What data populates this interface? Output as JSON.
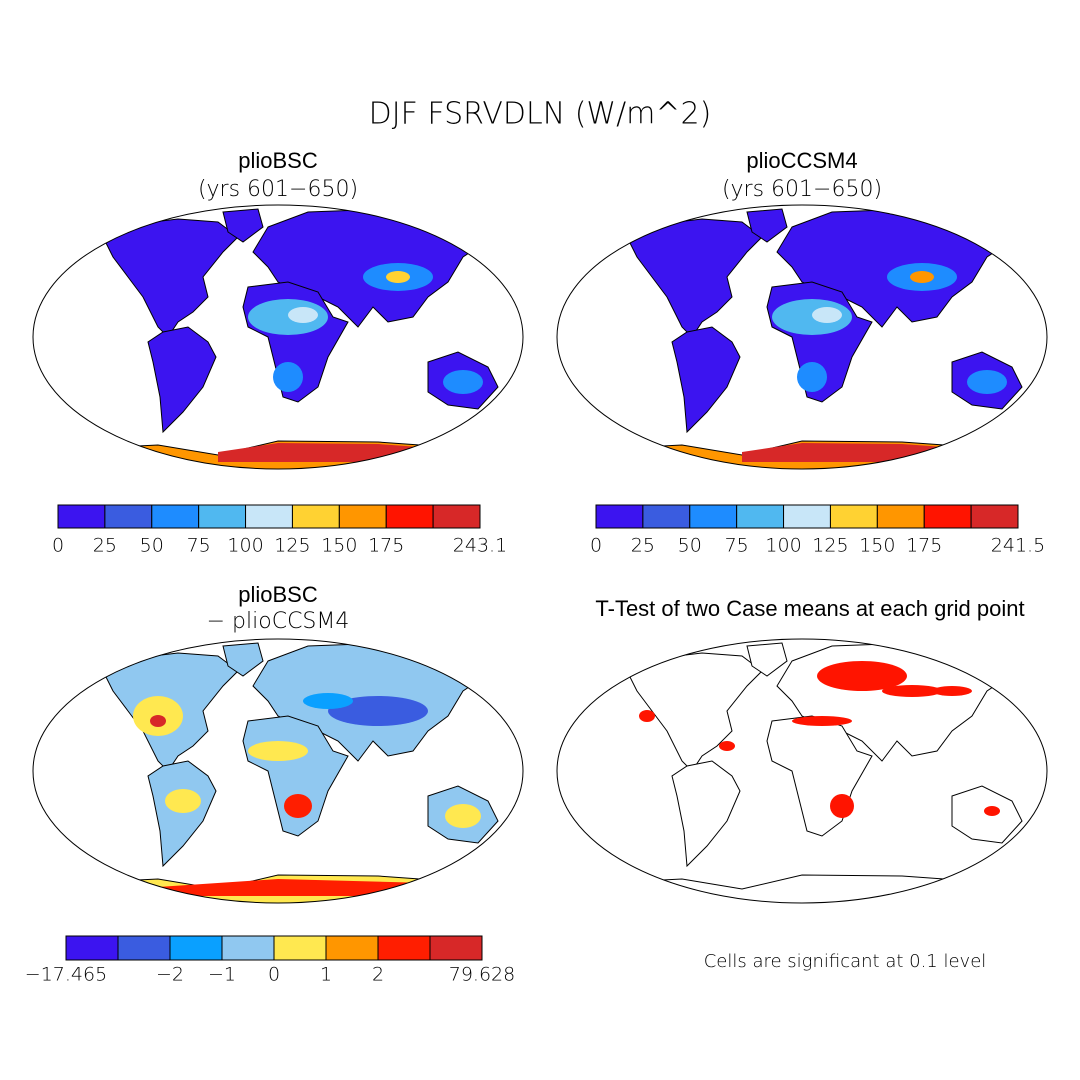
{
  "title": "DJF FSRVDLN (W/m^2)",
  "panels": [
    {
      "title": "plioBSC",
      "subtitle": "(yrs 601−650)",
      "colorbar": {
        "colors": [
          "#3c14f0",
          "#3a5ce0",
          "#1e8cff",
          "#50b8f0",
          "#c8e6f8",
          "#ffd232",
          "#ff9600",
          "#ff1400",
          "#d72828"
        ],
        "labels": [
          "0",
          "25",
          "50",
          "75",
          "100",
          "125",
          "150",
          "175",
          null,
          "243.1"
        ]
      }
    },
    {
      "title": "plioCCSM4",
      "subtitle": "(yrs 601−650)",
      "colorbar": {
        "colors": [
          "#3c14f0",
          "#3a5ce0",
          "#1e8cff",
          "#50b8f0",
          "#c8e6f8",
          "#ffd232",
          "#ff9600",
          "#ff1400",
          "#d72828"
        ],
        "labels": [
          "0",
          "25",
          "50",
          "75",
          "100",
          "125",
          "150",
          "175",
          null,
          "241.5"
        ]
      }
    },
    {
      "title": "plioBSC",
      "subtitle": "− plioCCSM4",
      "colorbar": {
        "colors": [
          "#3c14f0",
          "#3a5ce0",
          "#0aa0ff",
          "#90c8f0",
          "#ffe850",
          "#ff9600",
          "#ff1e00",
          "#d72828"
        ],
        "labels": [
          "−17.465",
          null,
          "−2",
          "−1",
          "0",
          "1",
          "2",
          null,
          "79.628"
        ]
      }
    }
  ],
  "ttest": {
    "title": "T-Test of two Case means at each grid point",
    "note": "Cells are significant at 0.1 level"
  }
}
